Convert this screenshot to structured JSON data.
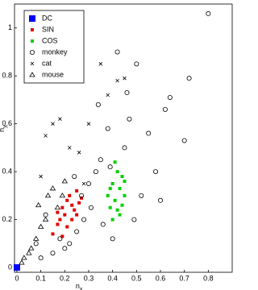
{
  "chart_data": {
    "type": "scatter",
    "xlabel": "n",
    "xlabel_sub": "x",
    "ylabel": "n",
    "ylabel_sub": "y",
    "xlim": [
      -0.01,
      0.9
    ],
    "ylim": [
      -0.02,
      1.1
    ],
    "xticks": [
      0,
      0.1,
      0.2,
      0.3,
      0.4,
      0.5,
      0.6,
      0.7,
      0.8
    ],
    "yticks": [
      0,
      0.2,
      0.4,
      0.6,
      0.8,
      1
    ],
    "legend": "top-left",
    "series": [
      {
        "name": "DC",
        "color": "#0000ff",
        "marker": "big-square",
        "x": [
          0
        ],
        "values": [
          0
        ]
      },
      {
        "name": "SIN",
        "color": "#e00000",
        "marker": "square",
        "x": [
          0.15,
          0.17,
          0.18,
          0.19,
          0.2,
          0.21,
          0.22,
          0.23,
          0.24,
          0.25,
          0.26,
          0.27,
          0.21,
          0.19,
          0.23,
          0.25,
          0.17
        ],
        "values": [
          0.14,
          0.18,
          0.2,
          0.25,
          0.22,
          0.28,
          0.3,
          0.26,
          0.24,
          0.32,
          0.27,
          0.29,
          0.17,
          0.13,
          0.2,
          0.22,
          0.23
        ]
      },
      {
        "name": "COS",
        "color": "#00d000",
        "marker": "square",
        "x": [
          0.38,
          0.39,
          0.4,
          0.41,
          0.42,
          0.43,
          0.44,
          0.45,
          0.4,
          0.42,
          0.44,
          0.39,
          0.41,
          0.43,
          0.45
        ],
        "values": [
          0.3,
          0.25,
          0.35,
          0.28,
          0.4,
          0.33,
          0.38,
          0.3,
          0.2,
          0.24,
          0.26,
          0.33,
          0.44,
          0.22,
          0.36
        ]
      },
      {
        "name": "monkey",
        "color": "#000000",
        "marker": "circle",
        "x": [
          0.8,
          0.72,
          0.7,
          0.64,
          0.62,
          0.55,
          0.5,
          0.47,
          0.42,
          0.38,
          0.35,
          0.33,
          0.3,
          0.28,
          0.25,
          0.22,
          0.2,
          0.18,
          0.15,
          0.12,
          0.1,
          0.08,
          0.58,
          0.52,
          0.45,
          0.36,
          0.31,
          0.27,
          0.49,
          0.4,
          0.34,
          0.24,
          0.6,
          0.46,
          0.39
        ],
        "values": [
          1.06,
          0.79,
          0.53,
          0.71,
          0.66,
          0.56,
          0.85,
          0.62,
          0.9,
          0.58,
          0.45,
          0.4,
          0.35,
          0.2,
          0.15,
          0.1,
          0.08,
          0.12,
          0.06,
          0.22,
          0.04,
          0.1,
          0.4,
          0.3,
          0.5,
          0.18,
          0.25,
          0.3,
          0.2,
          0.12,
          0.68,
          0.38,
          0.28,
          0.73,
          0.42
        ]
      },
      {
        "name": "cat",
        "color": "#000000",
        "marker": "cross",
        "x": [
          0.1,
          0.12,
          0.15,
          0.18,
          0.22,
          0.26,
          0.3,
          0.35,
          0.38,
          0.42,
          0.45,
          0.28
        ],
        "values": [
          0.38,
          0.55,
          0.6,
          0.62,
          0.5,
          0.48,
          0.6,
          0.85,
          0.72,
          0.78,
          0.79,
          0.35
        ]
      },
      {
        "name": "mouse",
        "color": "#000000",
        "marker": "triangle",
        "x": [
          0.02,
          0.03,
          0.05,
          0.06,
          0.08,
          0.1,
          0.12,
          0.13,
          0.15,
          0.17,
          0.19,
          0.09,
          0.2
        ],
        "values": [
          0.02,
          0.04,
          0.06,
          0.08,
          0.12,
          0.17,
          0.2,
          0.3,
          0.33,
          0.25,
          0.3,
          0.26,
          0.36
        ]
      }
    ]
  }
}
